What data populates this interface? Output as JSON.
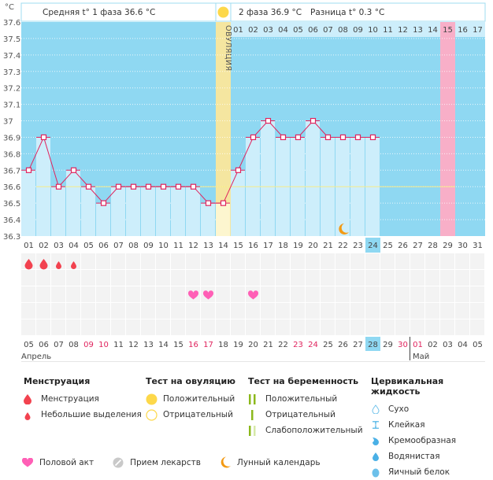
{
  "chart_data": {
    "type": "line",
    "title": "",
    "y_unit_label": "°C",
    "ylim": [
      36.3,
      37.6
    ],
    "y_ticks": [
      "37.6",
      "37.5",
      "37.4",
      "37.3",
      "37.2",
      "37.1",
      "37",
      "36.9",
      "36.8",
      "36.7",
      "36.6",
      "36.5",
      "36.4",
      "36.3"
    ],
    "cycle_days": [
      "01",
      "02",
      "03",
      "04",
      "05",
      "06",
      "07",
      "08",
      "09",
      "10",
      "11",
      "12",
      "13",
      "14",
      "15",
      "16",
      "17",
      "18",
      "19",
      "20",
      "21",
      "22",
      "23",
      "24",
      "25",
      "26",
      "27",
      "28",
      "29",
      "30",
      "31"
    ],
    "temperatures": [
      36.7,
      36.9,
      36.6,
      36.7,
      36.6,
      36.5,
      36.6,
      36.6,
      36.6,
      36.6,
      36.6,
      36.6,
      36.5,
      36.5,
      36.7,
      36.9,
      37.0,
      36.9,
      36.9,
      37.0,
      36.9,
      36.9,
      36.9,
      36.9,
      null,
      null,
      null,
      null,
      null,
      null,
      null
    ],
    "coverline": 36.6,
    "ovulation_day_index": 13,
    "ovulation_label": "ОВУЛЯЦИЯ",
    "phase2_days": [
      "01",
      "02",
      "03",
      "04",
      "05",
      "06",
      "07",
      "08",
      "09",
      "10",
      "11",
      "12",
      "13",
      "14",
      "15",
      "16",
      "17"
    ],
    "phase2_highlight_index": 14,
    "current_day_index": 23,
    "moon_day_index": 21,
    "calendar_dates": [
      "05",
      "06",
      "07",
      "08",
      "09",
      "10",
      "11",
      "12",
      "13",
      "14",
      "15",
      "16",
      "17",
      "18",
      "19",
      "20",
      "21",
      "22",
      "23",
      "24",
      "25",
      "26",
      "27",
      "28",
      "29",
      "30",
      "01",
      "02",
      "03",
      "04",
      "05"
    ],
    "calendar_red_indices": [
      4,
      5,
      11,
      12,
      18,
      19,
      25,
      26
    ],
    "today_date_index": 23,
    "month_labels": [
      {
        "label": "Апрель",
        "start_index": 0
      },
      {
        "label": "Май",
        "start_index": 26
      }
    ],
    "menstruation": [
      {
        "day_index": 0,
        "type": "heavy"
      },
      {
        "day_index": 1,
        "type": "heavy"
      },
      {
        "day_index": 2,
        "type": "light"
      },
      {
        "day_index": 3,
        "type": "light"
      }
    ],
    "intercourse_day_indices": [
      11,
      12,
      15
    ],
    "colors": {
      "background": "#8fd8f2",
      "bar": "#cdeefb",
      "line": "#e0245e",
      "ovulation": "#f5e6a0",
      "highlight": "#f8afc8",
      "coverline": "#f7eb8a",
      "today": "#8fd8f2"
    }
  },
  "header": {
    "phase1_text": "Средняя t° 1 фаза 36.6 °C",
    "phase2_text": "2 фаза 36.9 °C",
    "diff_text": "Разница t° 0.3 °C"
  },
  "legend": {
    "menstruation": {
      "title": "Менструация",
      "items": [
        "Менструация",
        "Небольшие выделения"
      ]
    },
    "ovulation_test": {
      "title": "Тест на овуляцию",
      "items": [
        "Положительный",
        "Отрицательный"
      ]
    },
    "pregnancy_test": {
      "title": "Тест на беременность",
      "items": [
        "Положительный",
        "Отрицательный",
        "Слабоположительный"
      ]
    },
    "cervical_fluid": {
      "title": "Цервикальная жидкость",
      "items": [
        "Сухо",
        "Клейкая",
        "Кремообразная",
        "Водянистая",
        "Яичный белок"
      ]
    },
    "other": [
      "Половой акт",
      "Прием лекарств",
      "Лунный календарь"
    ]
  }
}
